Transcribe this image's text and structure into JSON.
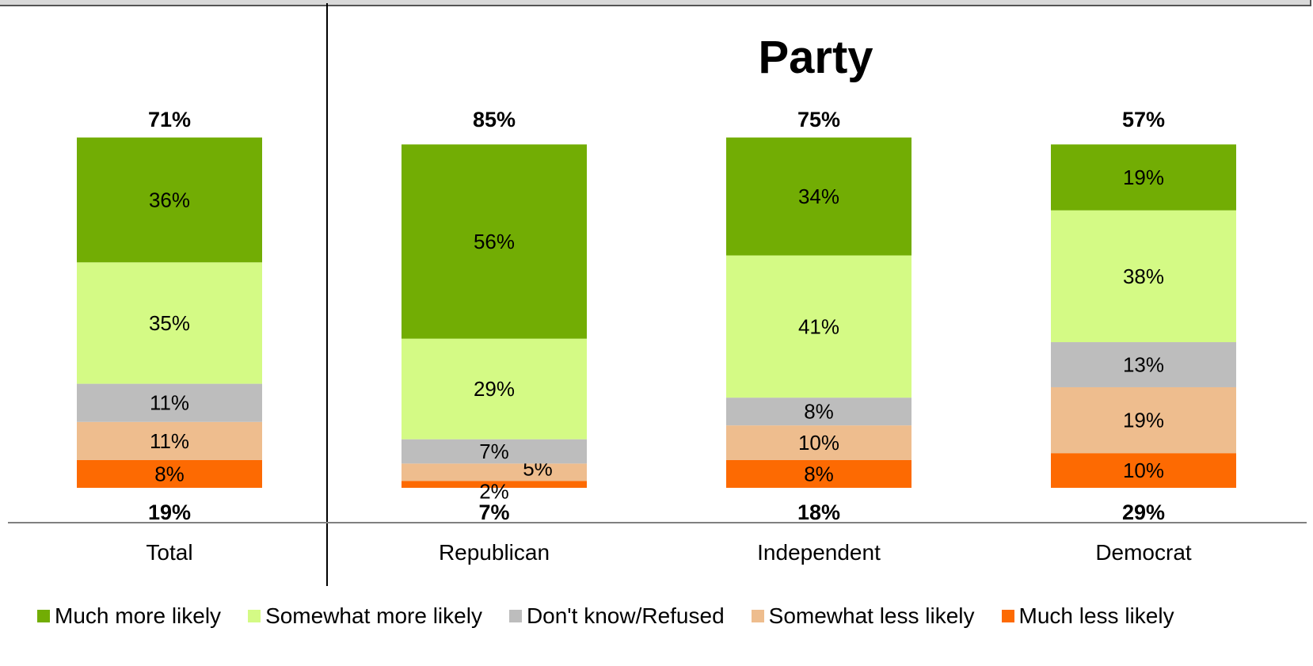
{
  "colors": {
    "much_more": "#72ad04",
    "somewhat_more": "#d4fa85",
    "dont_know": "#bdbdbd",
    "somewhat_less": "#eebd8e",
    "much_less": "#fd6a02",
    "axis": "#808080",
    "divider": "#000000"
  },
  "chart_data": {
    "type": "bar",
    "stacked": true,
    "section_title": "Party",
    "categories": [
      "Total",
      "Republican",
      "Independent",
      "Democrat"
    ],
    "series": [
      {
        "name": "Much less likely",
        "key": "much_less",
        "values": [
          8,
          2,
          8,
          10
        ]
      },
      {
        "name": "Somewhat less likely",
        "key": "somewhat_less",
        "values": [
          11,
          5,
          10,
          19
        ]
      },
      {
        "name": "Don't know/Refused",
        "key": "dont_know",
        "values": [
          11,
          7,
          8,
          13
        ]
      },
      {
        "name": "Somewhat more likely",
        "key": "somewhat_more",
        "values": [
          35,
          29,
          41,
          38
        ]
      },
      {
        "name": "Much more likely",
        "key": "much_more",
        "values": [
          36,
          56,
          34,
          19
        ]
      }
    ],
    "top_totals": [
      "71%",
      "85%",
      "75%",
      "57%"
    ],
    "bottom_totals": [
      "19%",
      "7%",
      "18%",
      "29%"
    ],
    "legend": [
      "Much more likely",
      "Somewhat more likely",
      "Don't know/Refused",
      "Somewhat less likely",
      "Much less likely"
    ],
    "legend_keys": [
      "much_more",
      "somewhat_more",
      "dont_know",
      "somewhat_less",
      "much_less"
    ],
    "ylim": [
      0,
      100
    ],
    "legend_position": "bottom"
  }
}
